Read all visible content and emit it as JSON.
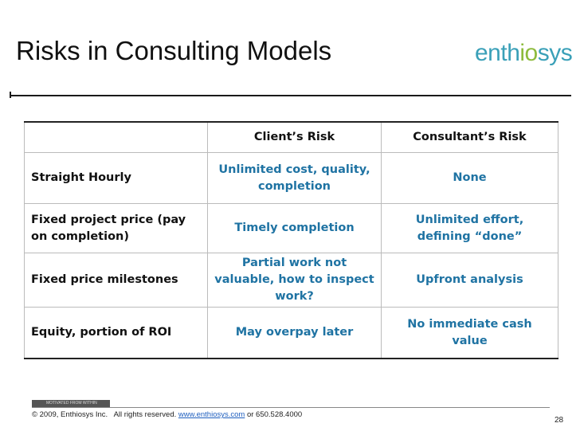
{
  "header": {
    "title": "Risks in Consulting Models",
    "logo": [
      "enth",
      "io",
      "sys"
    ]
  },
  "table": {
    "columns": [
      "",
      "Client’s Risk",
      "Consultant’s Risk"
    ],
    "rows": [
      [
        "Straight Hourly",
        "Unlimited cost, quality, completion",
        "None"
      ],
      [
        "Fixed project price (pay on completion)",
        "Timely completion",
        "Unlimited effort, defining “done”"
      ],
      [
        "Fixed price milestones",
        "Partial work not valuable, how to inspect work?",
        "Upfront analysis"
      ],
      [
        "Equity, portion of ROI",
        "May overpay later",
        "No immediate cash value"
      ]
    ]
  },
  "footer": {
    "tagline": "MOTIVATED FROM WITHIN",
    "copyright": "© 2009, Enthiosys Inc.   All rights reserved.",
    "link": "www.enthiosys.com",
    "phone": "or 650.528.4000",
    "page": "28"
  }
}
